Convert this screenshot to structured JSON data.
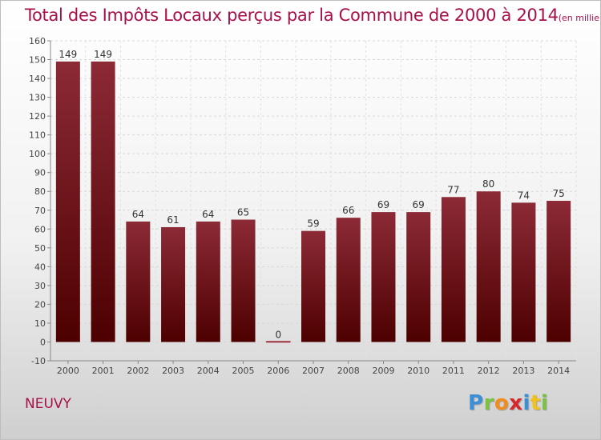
{
  "header": {
    "title": "Total des Impôts Locaux perçus par la Commune de 2000 à 2014",
    "unit": "(en milliers d'€)"
  },
  "commune": "NEUVY",
  "logo": {
    "text": "Proxiti",
    "letters": [
      {
        "char": "P",
        "color": "#3a8fd6"
      },
      {
        "char": "r",
        "color": "#7cc142"
      },
      {
        "char": "o",
        "color": "#f28c1c"
      },
      {
        "char": "x",
        "color": "#d6282b"
      },
      {
        "char": "i",
        "color": "#3a8fd6"
      },
      {
        "char": "t",
        "color": "#f2c21c"
      },
      {
        "char": "i",
        "color": "#7cc142"
      }
    ]
  },
  "chart_data": {
    "type": "bar",
    "title": "Total des Impôts Locaux perçus par la Commune de 2000 à 2014",
    "unit": "(en milliers d'€)",
    "categories": [
      "2000",
      "2001",
      "2002",
      "2003",
      "2004",
      "2005",
      "2006",
      "2007",
      "2008",
      "2009",
      "2010",
      "2011",
      "2012",
      "2013",
      "2014"
    ],
    "values": [
      149,
      149,
      64,
      61,
      64,
      65,
      0,
      59,
      66,
      69,
      69,
      77,
      80,
      74,
      75
    ],
    "ylim": [
      -10,
      160
    ],
    "yticks": [
      -10,
      0,
      10,
      20,
      30,
      40,
      50,
      60,
      70,
      80,
      90,
      100,
      110,
      120,
      130,
      140,
      150,
      160
    ],
    "grid": true,
    "bar_color": "#8b1a2b"
  }
}
